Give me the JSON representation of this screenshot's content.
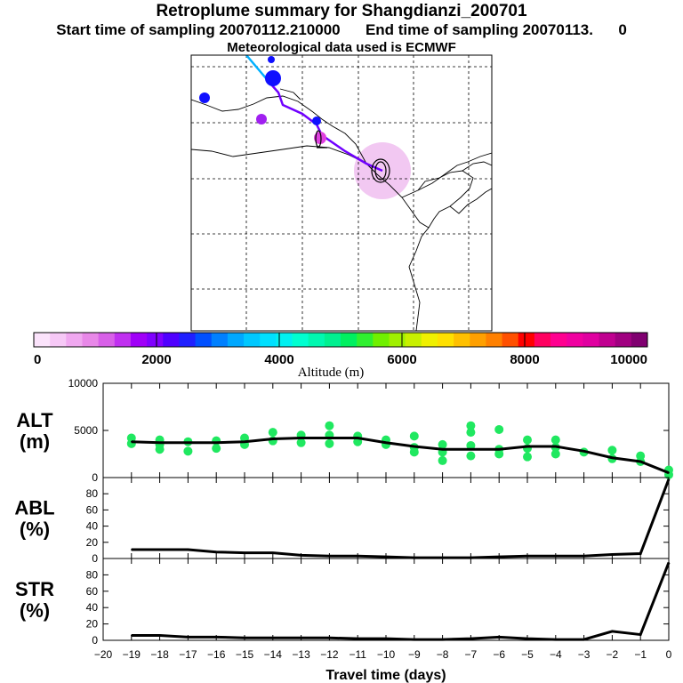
{
  "header": {
    "title": "Retroplume summary for Shangdianzi_200701",
    "line2": "Start time of sampling 20070112.210000      End time of sampling 20070113.      0",
    "line3": "Meteorological data used is ECMWF"
  },
  "colorbar": {
    "label": "Altitude  (m)",
    "ticks": [
      "0",
      "2000",
      "4000",
      "6000",
      "8000",
      "10000"
    ],
    "colors": [
      "#fbe3fb",
      "#f6c8f6",
      "#f0a8f0",
      "#e888e8",
      "#d860e8",
      "#c030f0",
      "#a000f8",
      "#8000ff",
      "#5000ff",
      "#2020ff",
      "#0050ff",
      "#0080ff",
      "#00a8ff",
      "#00c8ff",
      "#00e0ff",
      "#00f0f0",
      "#00ffd0",
      "#00f8b0",
      "#00f090",
      "#00f060",
      "#30f030",
      "#70f000",
      "#a0f000",
      "#c8f000",
      "#f0f000",
      "#ffe000",
      "#ffc000",
      "#ffa000",
      "#ff8000",
      "#ff5000",
      "#ff0000",
      "#ff0060",
      "#ff0090",
      "#f000a0",
      "#e000a0",
      "#c00090",
      "#a00080",
      "#800070"
    ]
  },
  "map": {
    "trajectory_colors": [
      "#00b0ff",
      "#7000ff"
    ],
    "plume_circle_color": "#f2c8f2",
    "markers": [
      {
        "color": "#1010ff"
      },
      {
        "color": "#1010ff"
      },
      {
        "color": "#1010ff"
      },
      {
        "color": "#a020f0"
      },
      {
        "color": "#e040e0"
      },
      {
        "color": "#1010ff"
      }
    ]
  },
  "chart_data": [
    {
      "type": "line",
      "panel": "ALT",
      "ylabel": "ALT\n(m)",
      "ylim": [
        0,
        10000
      ],
      "yticks": [
        "10000",
        "5000",
        "0"
      ],
      "x": [
        -19,
        -18,
        -17,
        -16,
        -15,
        -14,
        -13,
        -12,
        -11,
        -10,
        -9,
        -8,
        -7,
        -6,
        -5,
        -4,
        -3,
        -2,
        -1,
        0
      ],
      "series": [
        {
          "name": "mean altitude",
          "values": [
            3800,
            3700,
            3700,
            3700,
            3800,
            4100,
            4200,
            4200,
            4200,
            3700,
            3300,
            3000,
            3000,
            3000,
            3300,
            3300,
            2800,
            2100,
            1700,
            500
          ]
        }
      ],
      "scatter_color": "#20e860",
      "scatter": [
        [
          -19,
          3600
        ],
        [
          -19,
          4200
        ],
        [
          -18,
          3500
        ],
        [
          -18,
          4000
        ],
        [
          -18,
          3000
        ],
        [
          -17,
          3800
        ],
        [
          -17,
          2800
        ],
        [
          -16,
          3900
        ],
        [
          -16,
          3100
        ],
        [
          -15,
          4200
        ],
        [
          -15,
          3500
        ],
        [
          -14,
          4800
        ],
        [
          -14,
          3900
        ],
        [
          -13,
          4500
        ],
        [
          -13,
          3700
        ],
        [
          -12,
          5500
        ],
        [
          -12,
          4500
        ],
        [
          -12,
          3600
        ],
        [
          -11,
          4400
        ],
        [
          -11,
          3800
        ],
        [
          -10,
          4000
        ],
        [
          -10,
          3500
        ],
        [
          -9,
          4400
        ],
        [
          -9,
          3200
        ],
        [
          -9,
          2700
        ],
        [
          -8,
          3500
        ],
        [
          -8,
          2700
        ],
        [
          -8,
          1800
        ],
        [
          -7,
          5500
        ],
        [
          -7,
          4800
        ],
        [
          -7,
          3400
        ],
        [
          -7,
          2300
        ],
        [
          -6,
          5100
        ],
        [
          -6,
          3000
        ],
        [
          -6,
          2500
        ],
        [
          -5,
          4000
        ],
        [
          -5,
          3100
        ],
        [
          -5,
          2200
        ],
        [
          -4,
          4000
        ],
        [
          -4,
          3200
        ],
        [
          -4,
          2500
        ],
        [
          -3,
          2700
        ],
        [
          -2,
          2900
        ],
        [
          -2,
          2000
        ],
        [
          -1,
          2300
        ],
        [
          -1,
          1700
        ],
        [
          0,
          800
        ],
        [
          0,
          300
        ]
      ]
    },
    {
      "type": "line",
      "panel": "ABL",
      "ylabel": "ABL\n(%)",
      "ylim": [
        0,
        100
      ],
      "yticks": [
        "80",
        "60",
        "40",
        "20",
        "0"
      ],
      "x": [
        -19,
        -18,
        -17,
        -16,
        -15,
        -14,
        -13,
        -12,
        -11,
        -10,
        -9,
        -8,
        -7,
        -6,
        -5,
        -4,
        -3,
        -2,
        -1,
        0
      ],
      "series": [
        {
          "name": "ABL fraction",
          "values": [
            11,
            11,
            11,
            8,
            7,
            7,
            4,
            3,
            3,
            2,
            1,
            1,
            1,
            2,
            3,
            3,
            3,
            5,
            6,
            98
          ]
        }
      ]
    },
    {
      "type": "line",
      "panel": "STR",
      "ylabel": "STR\n(%)",
      "ylim": [
        0,
        100
      ],
      "yticks": [
        "80",
        "60",
        "40",
        "20",
        "0"
      ],
      "x": [
        -19,
        -18,
        -17,
        -16,
        -15,
        -14,
        -13,
        -12,
        -11,
        -10,
        -9,
        -8,
        -7,
        -6,
        -5,
        -4,
        -3,
        -2,
        -1,
        0
      ],
      "series": [
        {
          "name": "stratosphere fraction",
          "values": [
            6,
            6,
            4,
            4,
            3,
            3,
            3,
            3,
            2,
            2,
            1,
            1,
            2,
            4,
            2,
            1,
            1,
            11,
            7,
            95
          ]
        }
      ],
      "xlabel": "Travel time (days)",
      "xticks": [
        "−20",
        "−19",
        "−18",
        "−17",
        "−16",
        "−15",
        "−14",
        "−13",
        "−12",
        "−11",
        "−10",
        "−9",
        "−8",
        "−7",
        "−6",
        "−5",
        "−4",
        "−3",
        "−2",
        "−1",
        "0"
      ]
    }
  ]
}
